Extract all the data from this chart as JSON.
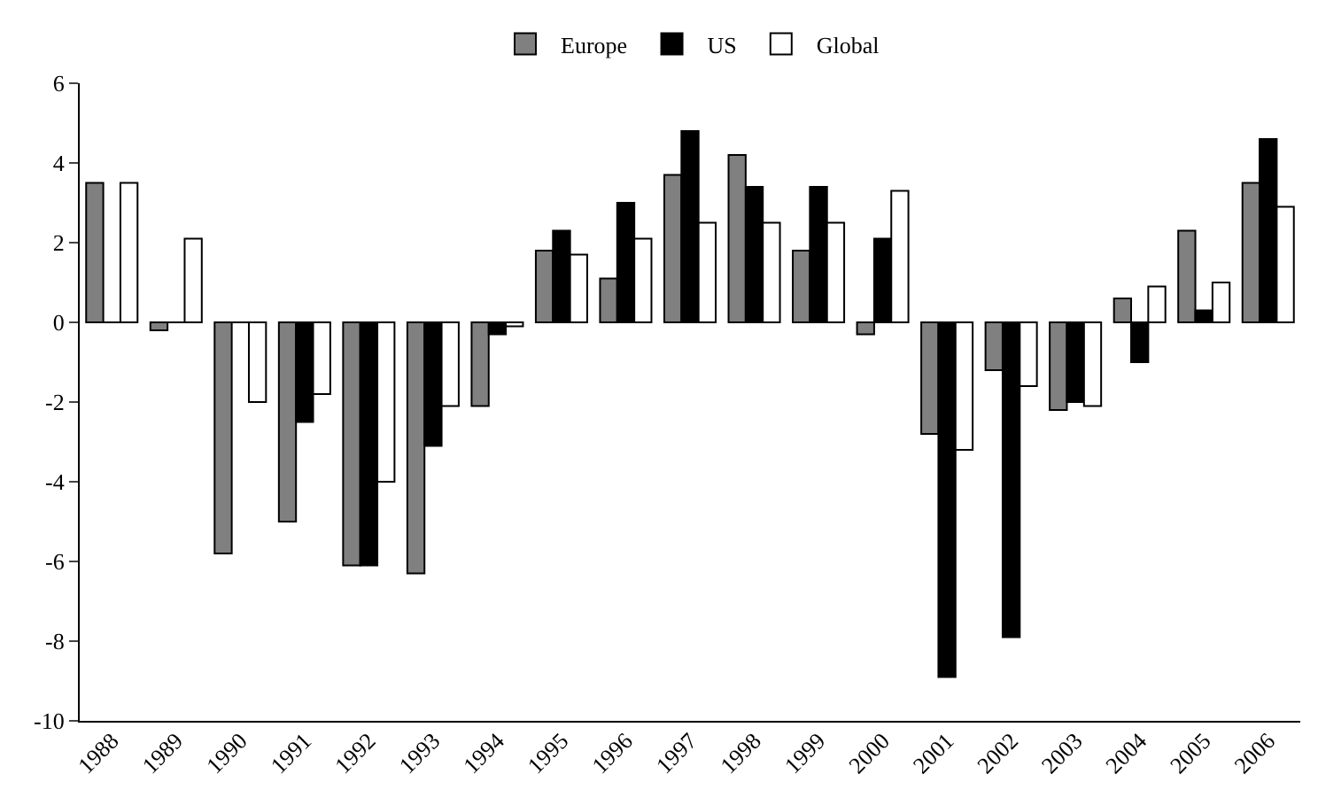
{
  "chart_data": {
    "type": "bar",
    "categories": [
      "1988",
      "1989",
      "1990",
      "1991",
      "1992",
      "1993",
      "1994",
      "1995",
      "1996",
      "1997",
      "1998",
      "1999",
      "2000",
      "2001",
      "2002",
      "2003",
      "2004",
      "2005",
      "2006"
    ],
    "series": [
      {
        "name": "Europe",
        "color": "#808080",
        "values": [
          3.5,
          -0.2,
          -5.8,
          -5.0,
          -6.1,
          -6.3,
          -2.1,
          1.8,
          1.1,
          3.7,
          4.2,
          1.8,
          -0.3,
          -2.8,
          -1.2,
          -2.2,
          0.6,
          2.3,
          3.5
        ]
      },
      {
        "name": "US",
        "color": "#000000",
        "values": [
          0,
          0,
          0,
          -2.5,
          -6.1,
          -3.1,
          -0.3,
          2.3,
          3.0,
          4.8,
          3.4,
          3.4,
          2.1,
          -8.9,
          -7.9,
          -2.0,
          -1.0,
          0.3,
          4.6
        ]
      },
      {
        "name": "Global",
        "color": "#ffffff",
        "values": [
          3.5,
          2.1,
          -2.0,
          -1.8,
          -4.0,
          -2.1,
          -0.1,
          1.7,
          2.1,
          2.5,
          2.5,
          2.5,
          3.3,
          -3.2,
          -1.6,
          -2.1,
          0.9,
          1.0,
          2.9
        ]
      }
    ],
    "ylim": [
      -10,
      6
    ],
    "yticks": [
      -10,
      -8,
      -6,
      -4,
      -2,
      0,
      2,
      4,
      6
    ],
    "legend": "top"
  }
}
